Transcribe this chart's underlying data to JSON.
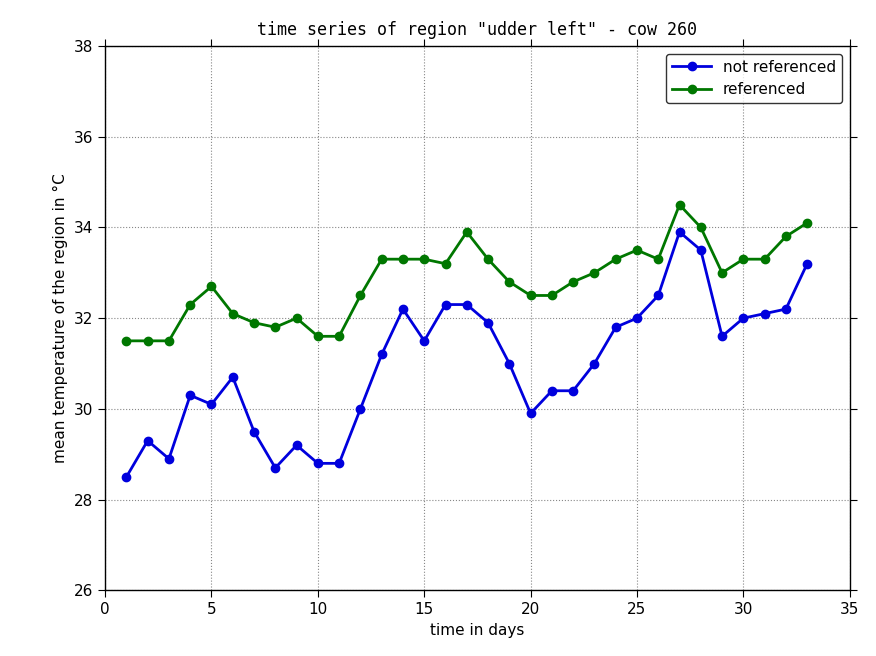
{
  "title": "time series of region \"udder left\" - cow 260",
  "xlabel": "time in days",
  "ylabel": "mean temperature of the region in °C",
  "xlim": [
    0,
    35
  ],
  "ylim": [
    26,
    38
  ],
  "xticks": [
    0,
    5,
    10,
    15,
    20,
    25,
    30,
    35
  ],
  "yticks": [
    26,
    28,
    30,
    32,
    34,
    36,
    38
  ],
  "bg_color": "#ffffff",
  "blue_color": "#0000dd",
  "green_color": "#007700",
  "not_referenced_x": [
    1,
    2,
    3,
    4,
    5,
    6,
    7,
    8,
    9,
    10,
    11,
    12,
    13,
    14,
    15,
    16,
    17,
    18,
    19,
    20,
    21,
    22,
    23,
    24,
    25,
    26,
    27,
    28,
    29,
    30,
    31,
    32,
    33
  ],
  "not_referenced_y": [
    28.5,
    29.3,
    28.9,
    30.3,
    30.1,
    30.7,
    29.5,
    28.7,
    29.2,
    28.8,
    28.8,
    30.0,
    31.2,
    32.2,
    31.5,
    32.3,
    32.3,
    31.9,
    31.0,
    29.9,
    30.4,
    30.4,
    31.0,
    31.8,
    32.0,
    32.5,
    33.9,
    33.5,
    31.6,
    32.0,
    32.1,
    32.2,
    33.2
  ],
  "referenced_x": [
    1,
    2,
    3,
    4,
    5,
    6,
    7,
    8,
    9,
    10,
    11,
    12,
    13,
    14,
    15,
    16,
    17,
    18,
    19,
    20,
    21,
    22,
    23,
    24,
    25,
    26,
    27,
    28,
    29,
    30,
    31,
    32,
    33
  ],
  "referenced_y": [
    31.5,
    31.5,
    31.5,
    32.3,
    32.7,
    32.1,
    31.9,
    31.8,
    32.0,
    31.6,
    31.6,
    32.5,
    33.3,
    33.3,
    33.3,
    33.2,
    33.9,
    33.3,
    32.8,
    32.5,
    32.5,
    32.8,
    33.0,
    33.3,
    33.5,
    33.3,
    34.5,
    34.0,
    33.0,
    33.3,
    33.3,
    33.8,
    34.1
  ],
  "legend_labels": [
    "not referenced",
    "referenced"
  ],
  "grid_color": "#888888",
  "marker": "o",
  "markersize": 6,
  "linewidth": 2.0,
  "title_fontsize": 12,
  "label_fontsize": 11,
  "tick_fontsize": 11,
  "legend_fontsize": 11
}
